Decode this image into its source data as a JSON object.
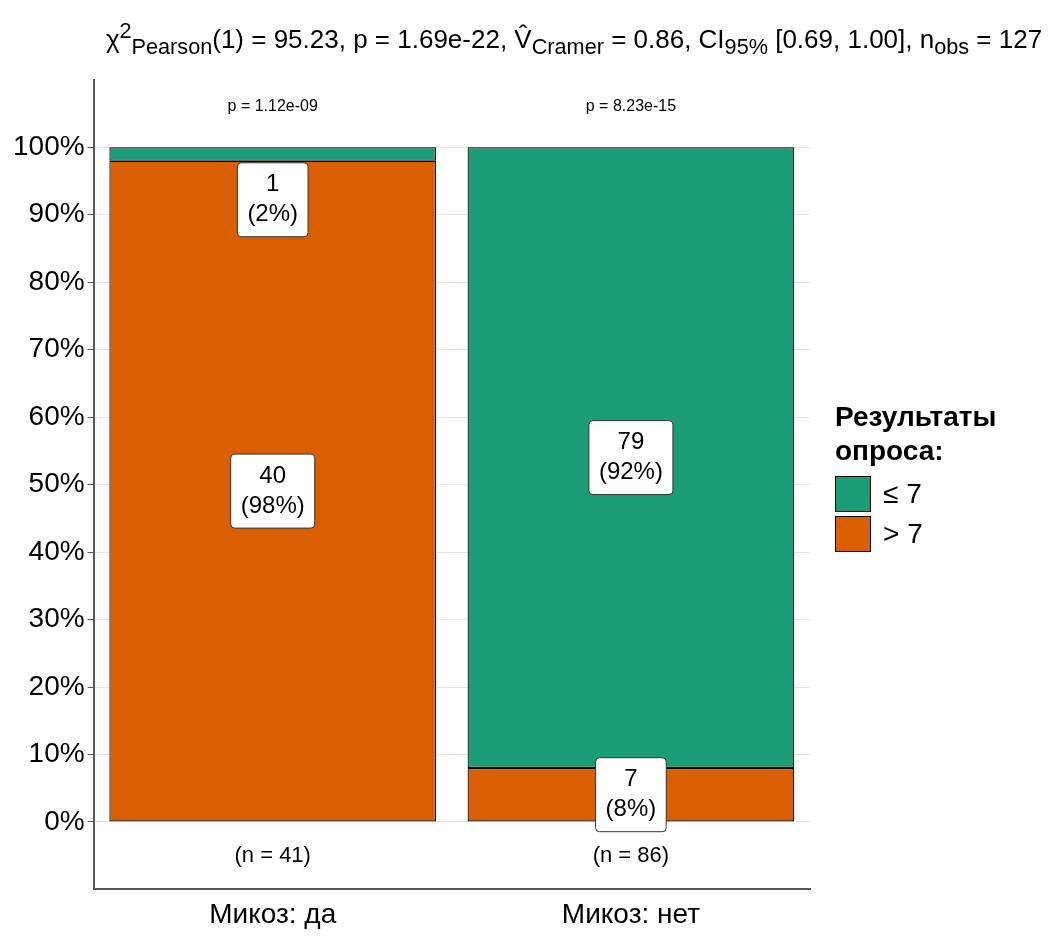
{
  "chart_data": {
    "type": "bar",
    "stacked": true,
    "title": "χ$^{2}$$_{Pearson}$(1) = 95.23, p = 1.69e-22, V̂$_{Cramer}$ = 0.86, CI$_{95%}$ [0.69, 1.00], n$_{obs}$ = 127",
    "categories": [
      "Микоз: да",
      "Микоз: нет"
    ],
    "series": [
      {
        "name": "> 7",
        "color": "#d95f02",
        "values": [
          98,
          8
        ],
        "value_labels": [
          "40\n(98%)",
          "7\n(8%)"
        ]
      },
      {
        "name": "≤ 7",
        "color": "#1b9e77",
        "values": [
          2,
          92
        ],
        "value_labels": [
          "1\n(2%)",
          "79\n(92%)"
        ]
      }
    ],
    "legend_title": "Результаты опроса:",
    "legend": "right",
    "ylim": [
      -10,
      110
    ],
    "yticks": [
      {
        "value": 0,
        "label": "0%"
      },
      {
        "value": 10,
        "label": "10%"
      },
      {
        "value": 20,
        "label": "20%"
      },
      {
        "value": 30,
        "label": "30%"
      },
      {
        "value": 40,
        "label": "40%"
      },
      {
        "value": 50,
        "label": "50%"
      },
      {
        "value": 60,
        "label": "60%"
      },
      {
        "value": 70,
        "label": "70%"
      },
      {
        "value": 80,
        "label": "80%"
      },
      {
        "value": 90,
        "label": "90%"
      },
      {
        "value": 100,
        "label": "100%"
      }
    ],
    "grid": "y",
    "annotations": [
      "p = 1.12e-09",
      "p = 8.23e-15",
      "(n = 41)",
      "(n = 86)"
    ]
  }
}
